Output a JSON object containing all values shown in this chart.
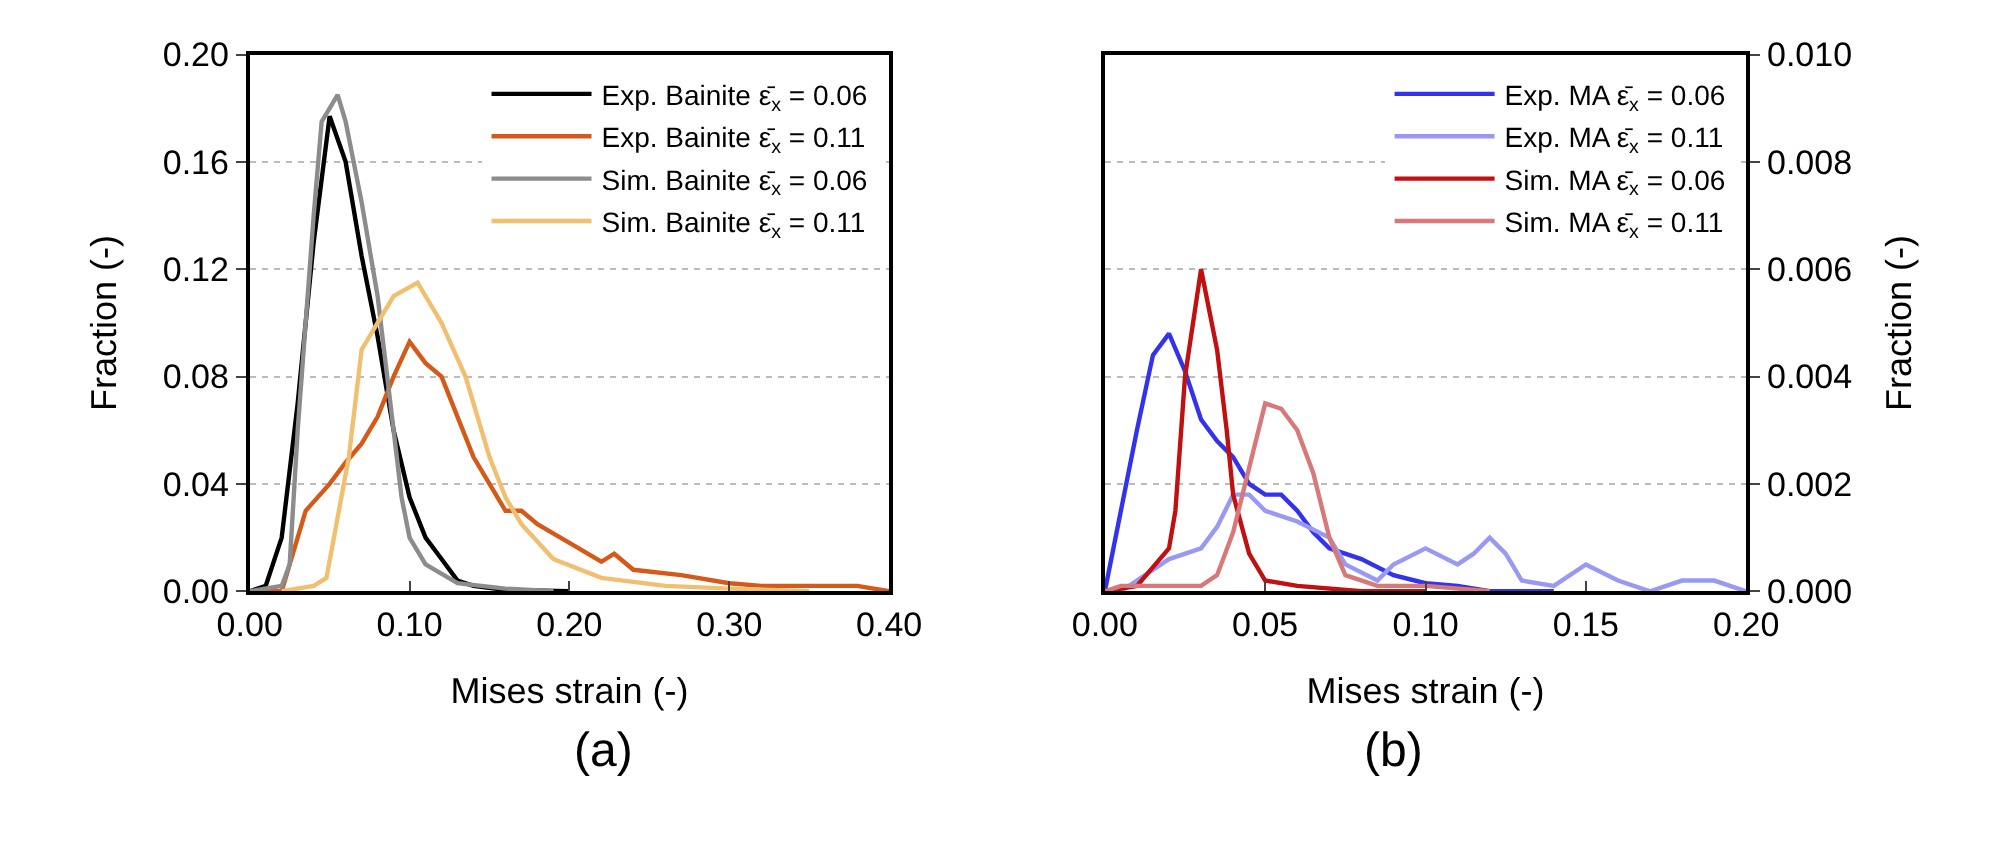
{
  "chart_data": [
    {
      "type": "line",
      "xlabel": "Mises strain (-)",
      "ylabel": "Fraction (-)",
      "annotations": [
        "(a)"
      ],
      "xlim": [
        0,
        0.4
      ],
      "xticks": [
        {
          "value": 0,
          "label": "0.00"
        },
        {
          "value": 0.1,
          "label": "0.10"
        },
        {
          "value": 0.2,
          "label": "0.20"
        },
        {
          "value": 0.3,
          "label": "0.30"
        },
        {
          "value": 0.4,
          "label": "0.40"
        }
      ],
      "ylim": [
        0,
        0.2
      ],
      "yticks": [
        {
          "value": 0,
          "label": "0.00"
        },
        {
          "value": 0.04,
          "label": "0.04"
        },
        {
          "value": 0.08,
          "label": "0.08"
        },
        {
          "value": 0.12,
          "label": "0.12"
        },
        {
          "value": 0.16,
          "label": "0.16"
        },
        {
          "value": 0.2,
          "label": "0.20"
        }
      ],
      "grid": "y",
      "legend": "top right",
      "marker": "none",
      "line_style": "solid",
      "series": [
        {
          "name": "Exp. Bainite ε̄$_{x}$ = 0.06",
          "color": "#000000",
          "x": [
            0,
            0.01,
            0.02,
            0.03,
            0.04,
            0.05,
            0.06,
            0.07,
            0.08,
            0.09,
            0.1,
            0.11,
            0.12,
            0.13,
            0.14,
            0.16,
            0.2
          ],
          "values": [
            0,
            0.002,
            0.02,
            0.07,
            0.13,
            0.177,
            0.16,
            0.125,
            0.095,
            0.06,
            0.035,
            0.02,
            0.012,
            0.004,
            0.002,
            0.0005,
            0
          ]
        },
        {
          "name": "Exp. Bainite ε̄$_{x}$ = 0.11",
          "color": "#d55a1a",
          "x": [
            0,
            0.02,
            0.025,
            0.035,
            0.05,
            0.06,
            0.07,
            0.08,
            0.09,
            0.1,
            0.11,
            0.12,
            0.13,
            0.14,
            0.15,
            0.16,
            0.17,
            0.18,
            0.2,
            0.22,
            0.228,
            0.24,
            0.27,
            0.3,
            0.32,
            0.35,
            0.38,
            0.4
          ],
          "values": [
            0,
            0,
            0.01,
            0.03,
            0.04,
            0.048,
            0.055,
            0.065,
            0.08,
            0.093,
            0.085,
            0.08,
            0.065,
            0.05,
            0.04,
            0.03,
            0.03,
            0.025,
            0.018,
            0.011,
            0.014,
            0.008,
            0.006,
            0.003,
            0.002,
            0.002,
            0.002,
            0
          ]
        },
        {
          "name": "Sim. Bainite ε̄$_{x}$ = 0.06",
          "color": "#8c8c8c",
          "x": [
            0,
            0.02,
            0.025,
            0.03,
            0.04,
            0.045,
            0.055,
            0.06,
            0.07,
            0.08,
            0.09,
            0.095,
            0.1,
            0.11,
            0.13,
            0.16,
            0.19
          ],
          "values": [
            0,
            0.002,
            0.01,
            0.06,
            0.14,
            0.175,
            0.185,
            0.175,
            0.145,
            0.11,
            0.06,
            0.035,
            0.02,
            0.01,
            0.003,
            0.001,
            0
          ]
        },
        {
          "name": "Sim. Bainite ε̄$_{x}$ = 0.11",
          "color": "#f0c070",
          "x": [
            0.02,
            0.04,
            0.048,
            0.062,
            0.07,
            0.08,
            0.09,
            0.105,
            0.12,
            0.135,
            0.15,
            0.16,
            0.17,
            0.19,
            0.22,
            0.26,
            0.3,
            0.35
          ],
          "values": [
            0,
            0.002,
            0.005,
            0.05,
            0.09,
            0.1,
            0.11,
            0.115,
            0.1,
            0.08,
            0.05,
            0.035,
            0.025,
            0.012,
            0.005,
            0.002,
            0.001,
            0
          ]
        }
      ]
    },
    {
      "type": "line",
      "xlabel": "Mises strain (-)",
      "y2label": "Fraction (-)",
      "annotations": [
        "(b)"
      ],
      "xlim": [
        0,
        0.2
      ],
      "xticks": [
        {
          "value": 0,
          "label": "0.00"
        },
        {
          "value": 0.05,
          "label": "0.05"
        },
        {
          "value": 0.1,
          "label": "0.10"
        },
        {
          "value": 0.15,
          "label": "0.15"
        },
        {
          "value": 0.2,
          "label": "0.20"
        }
      ],
      "y2lim": [
        0,
        0.01
      ],
      "y2ticks": [
        {
          "value": 0,
          "label": "0.000"
        },
        {
          "value": 0.002,
          "label": "0.002"
        },
        {
          "value": 0.004,
          "label": "0.004"
        },
        {
          "value": 0.006,
          "label": "0.006"
        },
        {
          "value": 0.008,
          "label": "0.008"
        },
        {
          "value": 0.01,
          "label": "0.010"
        }
      ],
      "grid": "y",
      "legend": "top right",
      "marker": "none",
      "line_style": "solid",
      "series": [
        {
          "name": "Exp. MA ε̄$_{x}$ = 0.06",
          "color": "#3333ee",
          "axis": "y2",
          "x": [
            0,
            0.005,
            0.01,
            0.015,
            0.02,
            0.025,
            0.03,
            0.035,
            0.04,
            0.045,
            0.05,
            0.055,
            0.06,
            0.065,
            0.07,
            0.08,
            0.09,
            0.1,
            0.11,
            0.12,
            0.14
          ],
          "values": [
            0,
            0.0015,
            0.003,
            0.0044,
            0.0048,
            0.0041,
            0.0032,
            0.0028,
            0.0025,
            0.002,
            0.0018,
            0.0018,
            0.0015,
            0.0011,
            0.0008,
            0.0006,
            0.0003,
            0.00015,
            0.0001,
            0,
            0
          ]
        },
        {
          "name": "Exp. MA ε̄$_{x}$ = 0.11",
          "color": "#9999f5",
          "axis": "y2",
          "x": [
            0.005,
            0.01,
            0.02,
            0.03,
            0.035,
            0.04,
            0.045,
            0.05,
            0.06,
            0.07,
            0.075,
            0.085,
            0.09,
            0.1,
            0.11,
            0.115,
            0.12,
            0.125,
            0.13,
            0.14,
            0.15,
            0.16,
            0.17,
            0.18,
            0.19,
            0.2
          ],
          "values": [
            0,
            0.0002,
            0.0006,
            0.0008,
            0.0012,
            0.0018,
            0.0018,
            0.0015,
            0.0013,
            0.001,
            0.0005,
            0.0002,
            0.0005,
            0.0008,
            0.0005,
            0.0007,
            0.001,
            0.0007,
            0.0002,
            0.0001,
            0.0005,
            0.0002,
            0,
            0.0002,
            0.0002,
            0
          ]
        },
        {
          "name": "Sim. MA ε̄$_{x}$ = 0.06",
          "color": "#c01010",
          "axis": "y2",
          "x": [
            0,
            0.01,
            0.02,
            0.022,
            0.025,
            0.03,
            0.035,
            0.038,
            0.04,
            0.045,
            0.05,
            0.06,
            0.08,
            0.1
          ],
          "values": [
            0,
            0.0001,
            0.0008,
            0.0015,
            0.004,
            0.006,
            0.0045,
            0.003,
            0.0018,
            0.0007,
            0.0002,
            0.0001,
            0,
            0
          ]
        },
        {
          "name": "Sim. MA ε̄$_{x}$ = 0.11",
          "color": "#d87878",
          "axis": "y2",
          "x": [
            0,
            0.005,
            0.02,
            0.03,
            0.035,
            0.04,
            0.045,
            0.05,
            0.055,
            0.06,
            0.065,
            0.07,
            0.075,
            0.085,
            0.1,
            0.12
          ],
          "values": [
            0,
            0.0001,
            0.0001,
            0.0001,
            0.0003,
            0.0011,
            0.0023,
            0.0035,
            0.0034,
            0.003,
            0.0022,
            0.001,
            0.0003,
            0.0001,
            0.0001,
            0
          ]
        }
      ]
    }
  ]
}
